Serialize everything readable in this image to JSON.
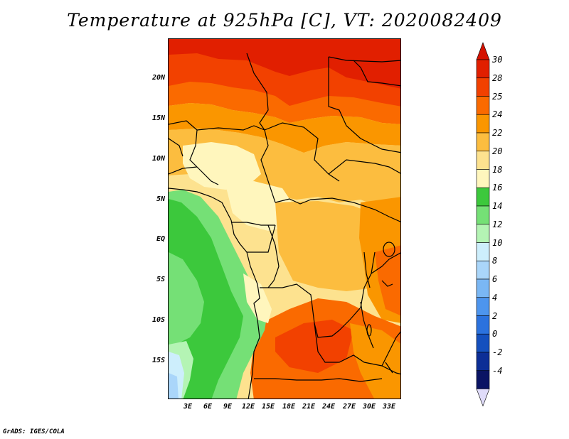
{
  "title": "Temperature at 925hPa [C], VT: 2020082409",
  "footer": "GrADS: IGES/COLA",
  "map": {
    "lat_labels": [
      "20N",
      "15N",
      "10N",
      "5N",
      "EQ",
      "5S",
      "10S",
      "15S"
    ],
    "lon_labels": [
      "3E",
      "6E",
      "9E",
      "12E",
      "15E",
      "18E",
      "21E",
      "24E",
      "27E",
      "30E",
      "33E"
    ]
  },
  "colorbar": {
    "labels": [
      "30",
      "28",
      "25",
      "24",
      "22",
      "20",
      "18",
      "16",
      "14",
      "12",
      "10",
      "8",
      "6",
      "4",
      "2",
      "0",
      "-2",
      "-4"
    ],
    "colors": [
      "#e11f00",
      "#f24100",
      "#fa6a00",
      "#fa9600",
      "#fcbd3f",
      "#fde28f",
      "#fff6bd",
      "#3cc83c",
      "#75e076",
      "#b4f4b4",
      "#cdeefc",
      "#aad6fa",
      "#7ab7f4",
      "#4d95ee",
      "#2b72de",
      "#1450be",
      "#0c2e96",
      "#0a1464"
    ],
    "top_color": "#d41200",
    "bottom_color": "#e0dcfa"
  }
}
